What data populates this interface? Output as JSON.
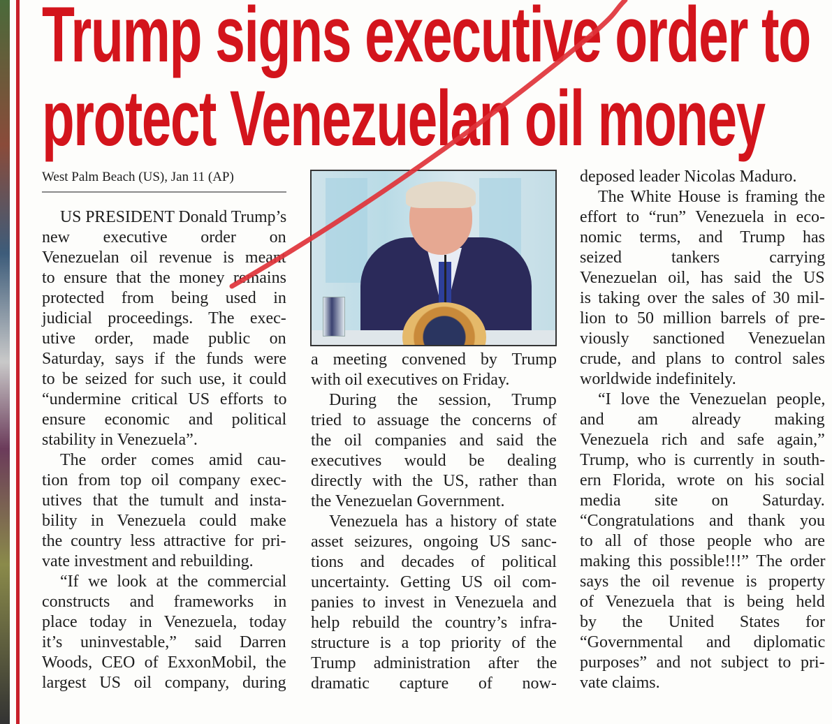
{
  "headline": {
    "line1": "Trump signs executive order to",
    "line2": "protect Venezuelan oil money",
    "color": "#d3141c"
  },
  "dateline": "West Palm Beach (US), Jan 11 (AP)",
  "photo": {
    "subject": "Donald Trump speaking at a table with presidential seal"
  },
  "annotation": {
    "color": "#e0333a",
    "shape": "red diagonal pen stroke"
  },
  "columns": [
    [
      {
        "lines": [
          "US PRESIDENT Donald Trump’s",
          "new executive order on",
          "Venezuelan oil revenue is meant",
          "to ensure that the money remains",
          "protected from being used in",
          "judicial proceedings. The exec-",
          "utive order, made public on",
          "Saturday, says if the funds were",
          "to be seized for such use, it could",
          "“undermine critical US efforts to",
          "ensure economic and political",
          "stability in Venezuela”."
        ]
      },
      {
        "lines": [
          "The order comes amid cau-",
          "tion from top oil company exec-",
          "utives that the tumult and insta-",
          "bility in Venezuela could make",
          "the country less attractive for pri-",
          "vate investment and rebuilding."
        ]
      },
      {
        "lines": [
          "“If we look at the commercial",
          "constructs and frameworks in",
          "place today in Venezuela, today",
          "it’s uninvestable,” said Darren",
          "Woods, CEO of ExxonMobil, the",
          "largest US oil company, during"
        ],
        "continues": true
      }
    ],
    [
      {
        "lines": [
          "a meeting convened by Trump",
          "with oil executives on Friday."
        ],
        "continued": true
      },
      {
        "lines": [
          "During the session, Trump",
          "tried to assuage the concerns of",
          "the oil companies and said the",
          "executives would be dealing",
          "directly with the US, rather than",
          "the Venezuelan Government."
        ]
      },
      {
        "lines": [
          "Venezuela has a history of state",
          "asset seizures, ongoing US sanc-",
          "tions and decades of political",
          "uncertainty. Getting US oil com-",
          "panies to invest in Venezuela and",
          "help rebuild the country’s infra-",
          "structure is a top priority of the",
          "Trump administration after the",
          "dramatic capture of now-"
        ],
        "continues": true
      }
    ],
    [
      {
        "lines": [
          "deposed leader Nicolas Maduro."
        ],
        "continued": true
      },
      {
        "lines": [
          "The White House is framing the",
          "effort to “run” Venezuela in eco-",
          "nomic terms, and Trump has",
          "seized tankers carrying",
          "Venezuelan oil, has said the US",
          "is taking over the sales of 30 mil-",
          "lion to 50 million barrels of pre-",
          "viously sanctioned Venezuelan",
          "crude, and plans to control sales",
          "worldwide indefinitely."
        ]
      },
      {
        "lines": [
          "“I love the Venezuelan people,",
          "and am already making",
          "Venezuela rich and safe again,”",
          "Trump, who is currently in south-",
          "ern Florida, wrote on his social",
          "media site on Saturday.",
          "“Congratulations and thank you",
          "to all of those people who are",
          "making this possible!!!” The order",
          "says the oil revenue is property",
          "of Venezuela that is being held",
          "by the United States for",
          "“Governmental and diplomatic",
          "purposes” and not subject to pri-",
          "vate claims."
        ]
      }
    ]
  ]
}
